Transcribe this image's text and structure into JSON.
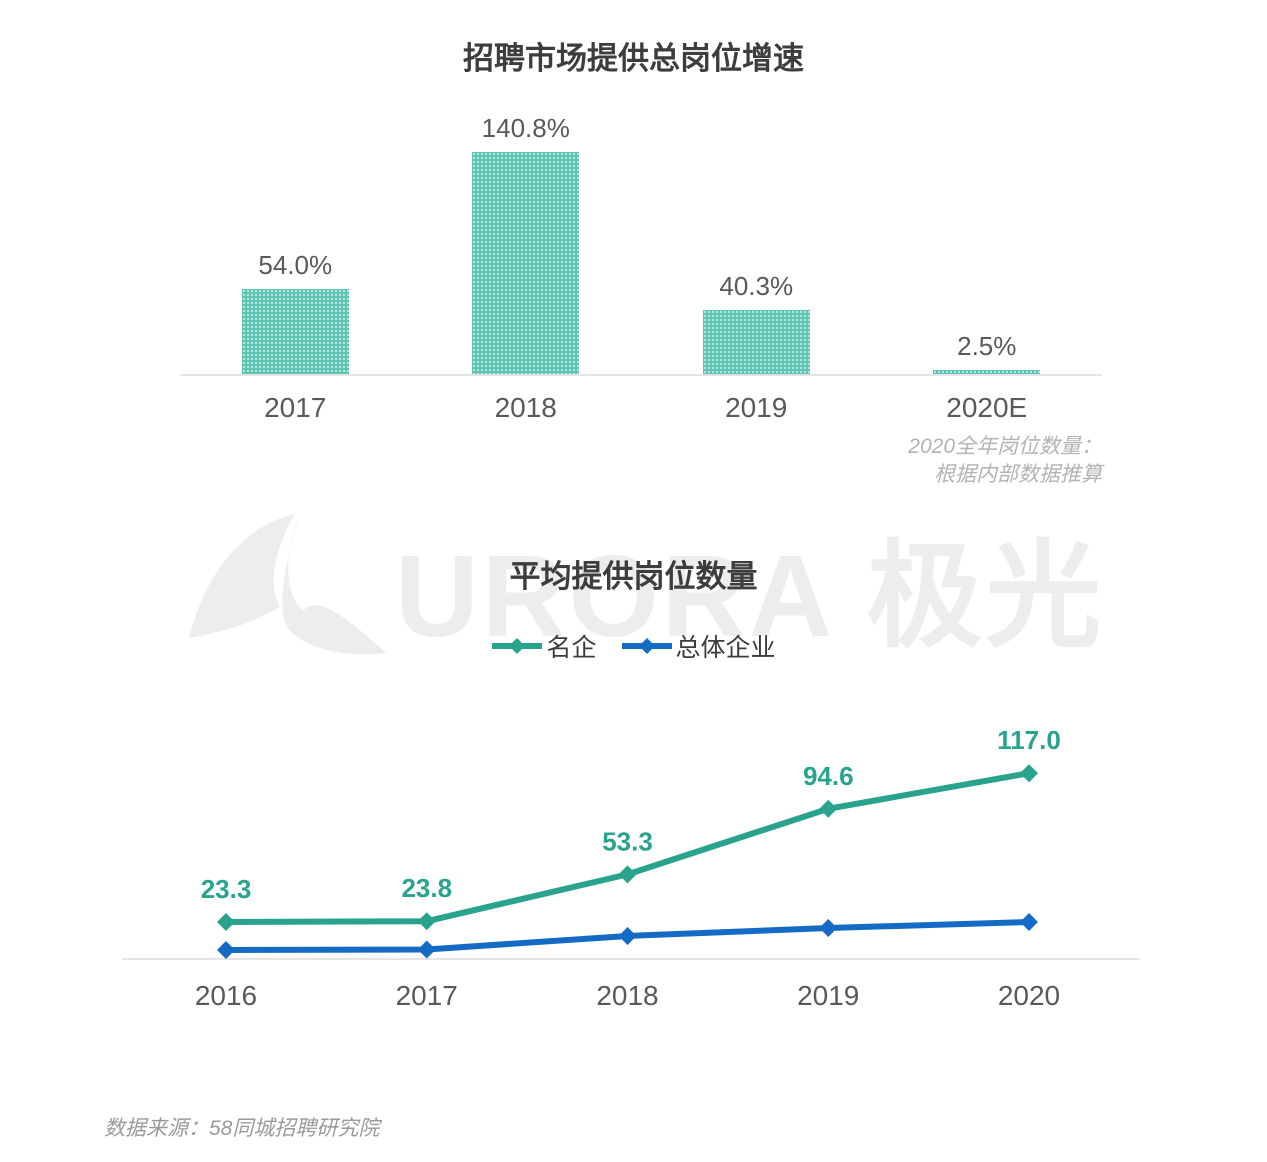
{
  "watermark": {
    "logo": "aurora-logo",
    "text": "URORA 极光"
  },
  "source_note": "数据来源：58同城招聘研究院",
  "colors": {
    "bar_fill": "#5ec5b5",
    "series_famous": "#29a38e",
    "series_overall": "#156bc4",
    "axis": "#e4e4e4",
    "tick_text": "#595959",
    "title_text": "#3d3d3d",
    "annotation_text": "#b3b3b3",
    "watermark": "#ededed"
  },
  "chart_data": [
    {
      "type": "bar",
      "title": "招聘市场提供总岗位增速",
      "categories": [
        "2017",
        "2018",
        "2019",
        "2020E"
      ],
      "values": [
        54.0,
        140.8,
        40.3,
        2.5
      ],
      "value_labels": [
        "54.0%",
        "140.8%",
        "40.3%",
        "2.5%"
      ],
      "unit": "%",
      "ylim": [
        0,
        150
      ],
      "grid": false,
      "bar_pattern": "white-dot-grid",
      "annotation_lines": [
        "2020全年岗位数量：",
        "根据内部数据推算"
      ]
    },
    {
      "type": "line",
      "title": "平均提供岗位数量",
      "x": [
        "2016",
        "2017",
        "2018",
        "2019",
        "2020"
      ],
      "series": [
        {
          "name": "名企",
          "color": "#29a38e",
          "values": [
            23.3,
            23.8,
            53.3,
            94.6,
            117.0
          ],
          "labels": [
            "23.3",
            "23.8",
            "53.3",
            "94.6",
            "117.0"
          ],
          "labels_shown": true,
          "marker": "diamond"
        },
        {
          "name": "总体企业",
          "color": "#156bc4",
          "values": [
            5.7,
            6.0,
            14.5,
            19.5,
            23.3
          ],
          "values_estimated": true,
          "labels_shown": false,
          "marker": "diamond"
        }
      ],
      "ylim": [
        0,
        150
      ],
      "grid": false,
      "legend_position": "top-center"
    }
  ]
}
